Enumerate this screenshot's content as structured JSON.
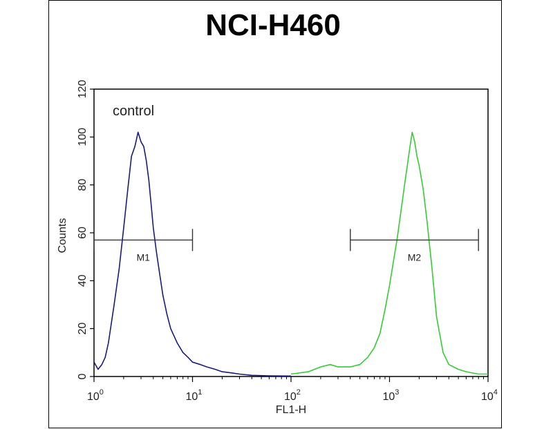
{
  "chart_data": {
    "type": "line",
    "title": "NCI-H460",
    "xlabel": "FL1-H",
    "ylabel": "Counts",
    "xscale": "log",
    "xlim": [
      1,
      10000
    ],
    "ylim": [
      0,
      120
    ],
    "xticks": [
      {
        "base": "10",
        "exp": "0"
      },
      {
        "base": "10",
        "exp": "1"
      },
      {
        "base": "10",
        "exp": "2"
      },
      {
        "base": "10",
        "exp": "3"
      },
      {
        "base": "10",
        "exp": "4"
      }
    ],
    "yticks": [
      "0",
      "20",
      "40",
      "60",
      "80",
      "100",
      "120"
    ],
    "grid": false,
    "annotation": "control",
    "series": [
      {
        "color": "#1a1a7a",
        "x": [
          1.0,
          1.1,
          1.2,
          1.3,
          1.4,
          1.6,
          1.8,
          2.0,
          2.2,
          2.4,
          2.6,
          2.8,
          3.0,
          3.2,
          3.4,
          3.6,
          3.8,
          4.0,
          4.3,
          4.6,
          5.0,
          5.5,
          6.0,
          7.0,
          8.0,
          9.0,
          10,
          12,
          14,
          17,
          20,
          25,
          30,
          40,
          60,
          100
        ],
        "y": [
          6,
          3,
          5,
          8,
          14,
          30,
          45,
          62,
          78,
          92,
          96,
          102,
          98,
          96,
          90,
          82,
          72,
          62,
          52,
          44,
          34,
          26,
          20,
          14,
          10,
          8,
          6,
          5,
          4,
          3,
          2,
          1.5,
          1,
          0.5,
          0.3,
          0.2
        ]
      },
      {
        "color": "#33cc33",
        "x": [
          100,
          150,
          200,
          250,
          300,
          400,
          500,
          600,
          700,
          800,
          900,
          1000,
          1200,
          1400,
          1600,
          1700,
          1800,
          1900,
          2000,
          2200,
          2400,
          2700,
          3000,
          3500,
          4000,
          5000,
          6000,
          8000,
          10000
        ],
        "y": [
          1,
          2,
          4,
          5,
          4,
          4,
          5,
          8,
          12,
          18,
          28,
          38,
          58,
          78,
          95,
          102,
          98,
          92,
          88,
          78,
          65,
          45,
          25,
          10,
          5,
          3,
          2,
          1,
          1
        ]
      }
    ],
    "markers": [
      {
        "label": "M1",
        "x_start": 1.0,
        "x_end": 10,
        "y": 57
      },
      {
        "label": "M2",
        "x_start": 400,
        "x_end": 8000,
        "y": 57
      }
    ]
  }
}
